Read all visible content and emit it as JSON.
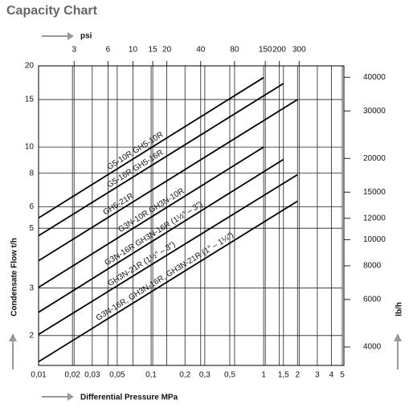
{
  "chart_data": {
    "type": "line",
    "title": "Capacity Chart",
    "xlabel": "Differential Pressure MPa",
    "ylabel": "Condensate Flow t/h",
    "y2label": "lb/h",
    "x2label": "psi",
    "xscale": "log",
    "yscale": "log",
    "grid": true,
    "color": "#000000",
    "xlim": [
      0.01,
      5
    ],
    "ylim": [
      1.55,
      20
    ],
    "x2lim": [
      1.45,
      725
    ],
    "y2lim": [
      3417,
      44092
    ],
    "xticks": [
      {
        "value": 0.01,
        "label": "0,01"
      },
      {
        "value": 0.02,
        "label": "0,02"
      },
      {
        "value": 0.03,
        "label": "0,03"
      },
      {
        "value": 0.05,
        "label": "0,05"
      },
      {
        "value": 0.1,
        "label": "0,1"
      },
      {
        "value": 0.2,
        "label": "0,2"
      },
      {
        "value": 0.3,
        "label": "0,3"
      },
      {
        "value": 0.5,
        "label": "0,5"
      },
      1,
      {
        "value": 1.5,
        "label": "1,5"
      },
      2,
      3,
      4,
      5
    ],
    "x2ticks": [
      3,
      6,
      10,
      15,
      20,
      40,
      80,
      150,
      200,
      300
    ],
    "yticks": [
      2,
      3,
      5,
      6,
      8,
      10,
      15,
      20
    ],
    "y2ticks": [
      4000,
      6000,
      8000,
      10000,
      12000,
      15000,
      20000,
      30000,
      40000
    ],
    "series": [
      {
        "name": "G5-10R  GH5-10R",
        "x": [
          0.01,
          1
        ],
        "values": [
          5.46,
          18.1
        ]
      },
      {
        "name": "G5-16R  GH5-16R",
        "x": [
          0.01,
          1.5
        ],
        "values": [
          4.69,
          17.2
        ]
      },
      {
        "name": "GH5-21R",
        "x": [
          0.01,
          2
        ],
        "values": [
          3.79,
          15.0
        ]
      },
      {
        "name": "G3N-10R  GH3N-10R",
        "x": [
          0.01,
          1
        ],
        "values": [
          3.02,
          10
        ]
      },
      {
        "name": "G3N-16R  GH3N-16R (1½″ – 3″)",
        "x": [
          0.01,
          1.5
        ],
        "values": [
          2.44,
          9.0
        ]
      },
      {
        "name": "GH3N-21R (1½″ – 3″)",
        "x": [
          0.01,
          2
        ],
        "values": [
          2.02,
          7.9
        ]
      },
      {
        "name": "G3N-16R, GH3N-16R, GH3N-21R (1″ – 1¼″)",
        "x": [
          0.01,
          2
        ],
        "values": [
          1.6,
          6.3
        ]
      }
    ]
  }
}
